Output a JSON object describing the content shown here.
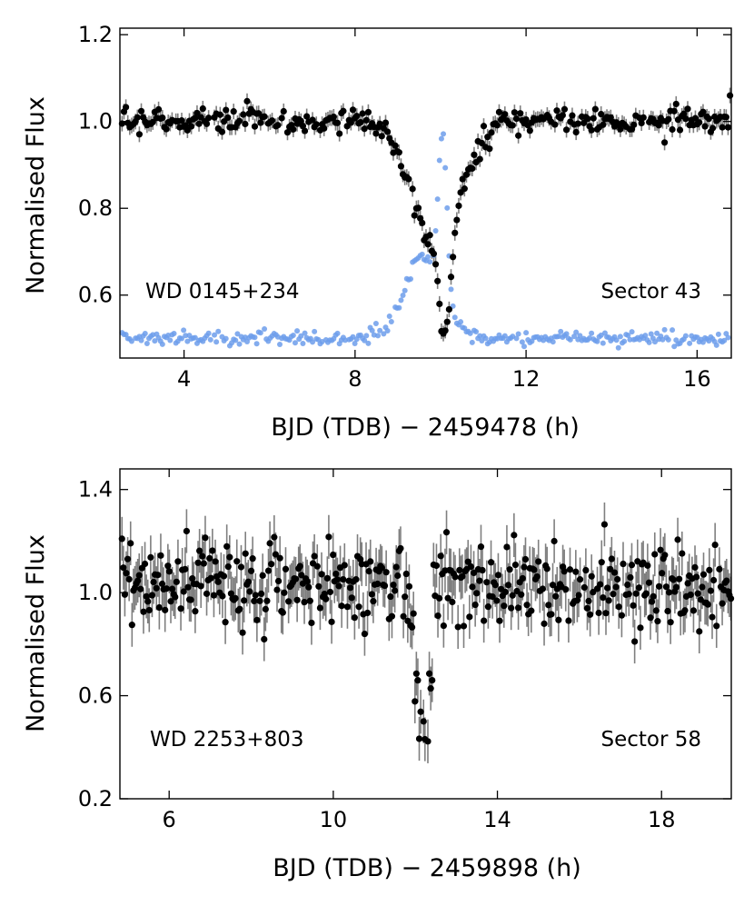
{
  "chart_data": [
    {
      "type": "scatter",
      "xlabel": "BJD (TDB) − 2459478  (h)",
      "ylabel": "Normalised Flux",
      "xlim": [
        2.5,
        16.8
      ],
      "ylim": [
        0.455,
        1.215
      ],
      "xticks": [
        4,
        8,
        12,
        16
      ],
      "xtick_labels": [
        "4",
        "8",
        "12",
        "16"
      ],
      "yticks": [
        0.6,
        0.8,
        1.0,
        1.2
      ],
      "ytick_labels": [
        "0.6",
        "0.8",
        "1.0",
        "1.2"
      ],
      "annotations": {
        "left": "WD 0145+234",
        "right": "Sector 43"
      },
      "series": [
        {
          "name": "light curve",
          "color": "#000000",
          "errorbar_color": "#7f7f7f",
          "model": {
            "baseline": 1.0,
            "dips": [
              {
                "center": 9.9,
                "width": 0.55,
                "depth": 0.3
              },
              {
                "center": 10.1,
                "width": 0.12,
                "depth": 0.22
              }
            ],
            "scatter": 0.015,
            "yerr": 0.018,
            "x_start": 2.55,
            "x_end": 16.8,
            "step": 0.045,
            "seed": 7
          }
        },
        {
          "name": "secondary light curve",
          "color": "#6d9eeb",
          "model": {
            "baseline": 0.5,
            "bumps": [
              {
                "center": 9.6,
                "width": 0.45,
                "height": 0.19
              },
              {
                "center": 10.05,
                "width": 0.1,
                "height": 0.36
              }
            ],
            "scatter": 0.008,
            "x_start": 2.55,
            "x_end": 16.8,
            "step": 0.045,
            "seed": 19
          }
        }
      ]
    },
    {
      "type": "scatter",
      "xlabel": "BJD (TDB) − 2459898  (h)",
      "ylabel": "Normalised Flux",
      "xlim": [
        4.8,
        19.7
      ],
      "ylim": [
        0.2,
        1.48
      ],
      "xticks": [
        6,
        10,
        14,
        18
      ],
      "xtick_labels": [
        "6",
        "10",
        "14",
        "18"
      ],
      "yticks": [
        0.2,
        0.6,
        1.0,
        1.4
      ],
      "ytick_labels": [
        "0.2",
        "0.6",
        "1.0",
        "1.4"
      ],
      "annotations": {
        "left": "WD 2253+803",
        "right": "Sector 58"
      },
      "series": [
        {
          "name": "light curve",
          "color": "#000000",
          "errorbar_color": "#7f7f7f",
          "model": {
            "baseline": 1.03,
            "dips": [
              {
                "center": 12.2,
                "width": 0.22,
                "depth": 0.47,
                "flat": true
              }
            ],
            "scatter": 0.085,
            "yerr": 0.085,
            "x_start": 4.85,
            "x_end": 19.7,
            "step": 0.035,
            "seed": 31
          }
        }
      ]
    }
  ]
}
